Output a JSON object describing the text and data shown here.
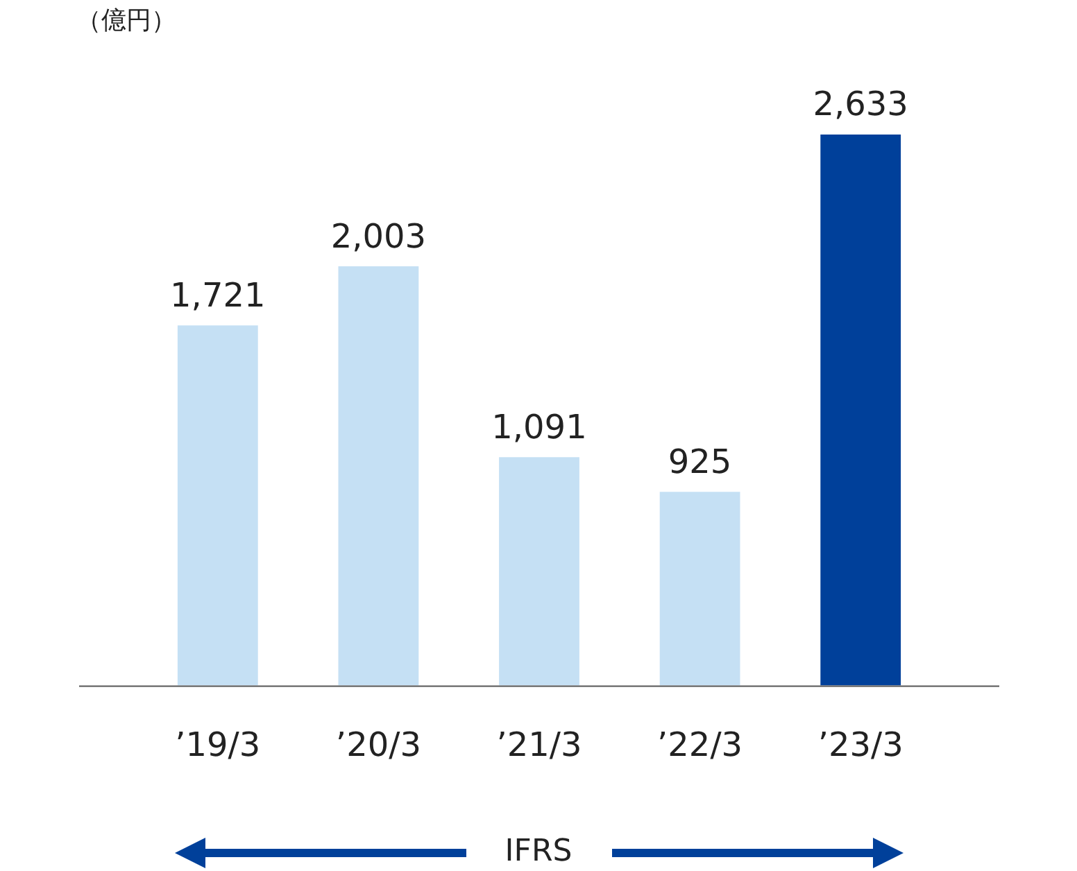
{
  "chart_data": {
    "type": "bar",
    "ylabel": "（億円）",
    "categories": [
      "’19/3",
      "’20/3",
      "’21/3",
      "’22/3",
      "’23/3"
    ],
    "values": [
      1721,
      2003,
      1091,
      925,
      2633
    ],
    "value_labels": [
      "1,721",
      "2,003",
      "1,091",
      "925",
      "2,633"
    ],
    "colors": [
      "#c5e0f4",
      "#c5e0f4",
      "#c5e0f4",
      "#c5e0f4",
      "#00409a"
    ],
    "annotations": [
      "IFRS"
    ]
  }
}
